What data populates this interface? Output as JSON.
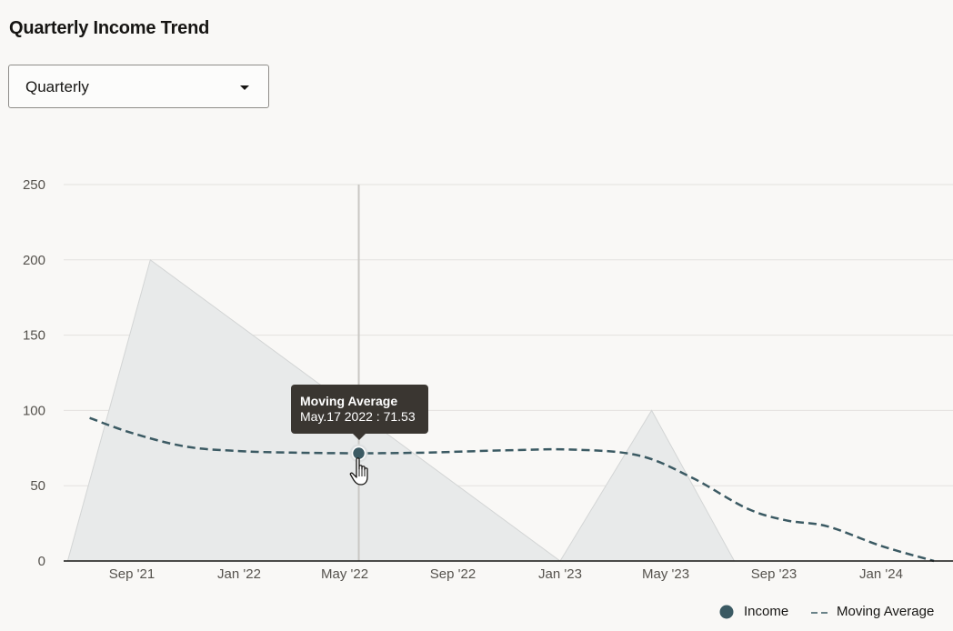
{
  "page": {
    "title": "Quarterly Income Trend",
    "select": {
      "value": "Quarterly",
      "icon": "caret-down-icon"
    }
  },
  "chart_data": {
    "type": "area",
    "title": "",
    "xlabel": "",
    "ylabel": "",
    "ylim": [
      0,
      250
    ],
    "yticks": [
      "0",
      "50",
      "100",
      "150",
      "200",
      "250"
    ],
    "xticks": [
      "Sep '21",
      "Jan '22",
      "May '22",
      "Sep '22",
      "Jan '23",
      "May '23",
      "Sep '23",
      "Jan '24"
    ],
    "grid": true,
    "legend_position": "bottom-right",
    "series": [
      {
        "name": "Income",
        "render": "area",
        "color": "#e8eaea",
        "x": [
          "2021-06-20",
          "2021-09-22",
          "2023-01-01",
          "2023-04-15",
          "2023-07-18"
        ],
        "values": [
          0,
          200,
          0,
          100,
          0
        ]
      },
      {
        "name": "Moving Average",
        "render": "dashed-line",
        "color": "#3b5a63",
        "x": [
          "2021-07-15",
          "2021-09-01",
          "2021-11-01",
          "2022-01-01",
          "2022-03-01",
          "2022-05-17",
          "2022-08-01",
          "2022-11-01",
          "2023-01-15",
          "2023-04-01",
          "2023-06-01",
          "2023-08-01",
          "2023-09-15",
          "2023-11-01",
          "2024-01-01",
          "2024-03-01"
        ],
        "values": [
          95,
          85,
          76,
          73,
          72,
          71.53,
          72,
          73.5,
          74,
          70,
          55,
          35,
          27,
          23,
          10,
          0
        ]
      }
    ],
    "highlight": {
      "series": "Moving Average",
      "x": "2022-05-17",
      "value": 71.53,
      "tooltip_title": "Moving Average",
      "tooltip_text": "May.17 2022 : 71.53"
    },
    "legend": [
      {
        "name": "Income",
        "marker": "circle",
        "color": "#3b5a63"
      },
      {
        "name": "Moving Average",
        "marker": "dashed-line",
        "color": "#3b5a63"
      }
    ]
  }
}
